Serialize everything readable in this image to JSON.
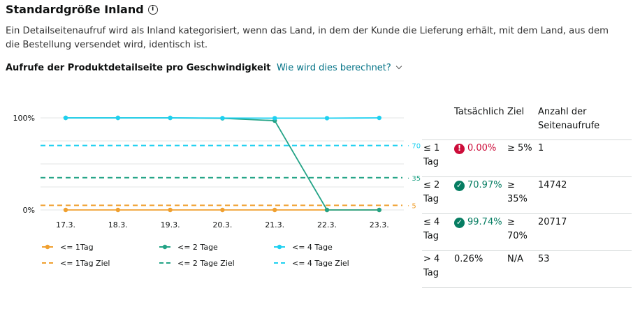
{
  "header": {
    "title": "Standardgröße Inland",
    "info_icon": "info-icon",
    "description": "Ein Detailseitenaufruf wird als Inland kategorisiert, wenn das Land, in dem der Kunde die Lieferung erhält, mit dem Land, aus dem die Bestellung versendet wird, identisch ist."
  },
  "section": {
    "label": "Aufrufe der Produktdetailseite pro Geschwindigkeit",
    "link": "Wie wird dies berechnet?"
  },
  "chart_data": {
    "type": "line",
    "categories": [
      "17.3.",
      "18.3.",
      "19.3.",
      "20.3.",
      "21.3.",
      "22.3.",
      "23.3."
    ],
    "ylim": [
      0,
      100
    ],
    "ytick_labels": [
      "100%",
      "0%"
    ],
    "grid": true,
    "legend_placement": "bottom",
    "series": [
      {
        "name": "<= 1Tag",
        "color": "#f0a030",
        "values": [
          0,
          0,
          0,
          0,
          0,
          0,
          0
        ]
      },
      {
        "name": "<= 2 Tage",
        "color": "#23a386",
        "values": [
          100,
          100,
          100,
          99.5,
          97,
          0,
          0
        ]
      },
      {
        "name": "<= 4 Tage",
        "color": "#1ed0f0",
        "values": [
          100,
          100,
          100,
          99.8,
          99.7,
          99.7,
          100
        ]
      }
    ],
    "targets": [
      {
        "name": "<= 1Tag Ziel",
        "color": "#f0a030",
        "value": 5,
        "label": "5"
      },
      {
        "name": "<= 2 Tage Ziel",
        "color": "#23a386",
        "value": 35,
        "label": "35"
      },
      {
        "name": "<= 4 Tage Ziel",
        "color": "#1ed0f0",
        "value": 70,
        "label": "70"
      }
    ]
  },
  "table": {
    "headers": {
      "actual": "Tatsächlich",
      "goal": "Ziel",
      "count": "Anzahl der Seitenaufrufe"
    },
    "rows": [
      {
        "speed": "≤ 1 Tag",
        "status": "error",
        "icon": "!",
        "actual": "0.00%",
        "goal": "≥ 5%",
        "count": "1"
      },
      {
        "speed": "≤ 2 Tag",
        "status": "ok",
        "icon": "✓",
        "actual": "70.97%",
        "goal": "≥ 35%",
        "count": "14742"
      },
      {
        "speed": "≤ 4 Tag",
        "status": "ok",
        "icon": "✓",
        "actual": "99.74%",
        "goal": "≥ 70%",
        "count": "20717"
      },
      {
        "speed": "> 4 Tag",
        "status": "none",
        "icon": "",
        "actual": "0.26%",
        "goal": "N/A",
        "count": "53"
      }
    ]
  }
}
